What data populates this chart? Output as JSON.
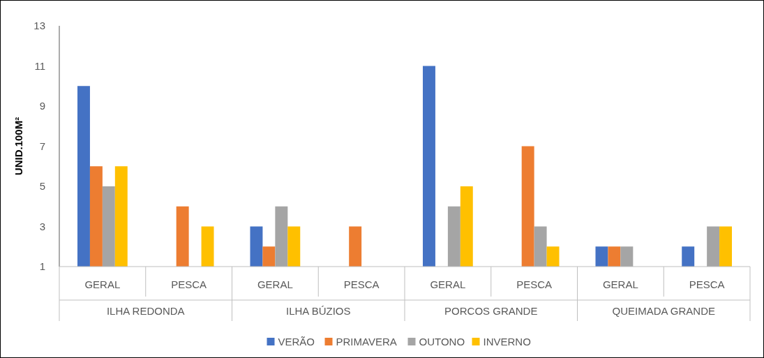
{
  "chart_data": {
    "type": "bar",
    "ylabel": "UNID.100M²",
    "categories": [
      "GERAL",
      "PESCA",
      "GERAL",
      "PESCA",
      "GERAL",
      "PESCA",
      "GERAL",
      "PESCA"
    ],
    "annotations": [
      "ILHA REDONDA",
      "ILHA BÚZIOS",
      "PORCOS GRANDE",
      "QUEIMADA GRANDE"
    ],
    "series": [
      {
        "name": "VERÃO",
        "color": "#4472c4",
        "values": [
          10,
          null,
          3,
          null,
          11,
          null,
          2,
          2
        ]
      },
      {
        "name": "PRIMAVERA",
        "color": "#ed7d31",
        "values": [
          6,
          4,
          2,
          3,
          null,
          7,
          2,
          null
        ]
      },
      {
        "name": "OUTONO",
        "color": "#a5a5a5",
        "values": [
          5,
          null,
          4,
          null,
          4,
          3,
          2,
          3
        ]
      },
      {
        "name": "INVERNO",
        "color": "#ffc000",
        "values": [
          6,
          3,
          3,
          null,
          5,
          2,
          null,
          3
        ]
      }
    ],
    "ylim": [
      1,
      13
    ],
    "yticks": [
      1,
      3,
      5,
      7,
      9,
      11,
      13
    ],
    "grid": false,
    "legend": "bottom"
  }
}
